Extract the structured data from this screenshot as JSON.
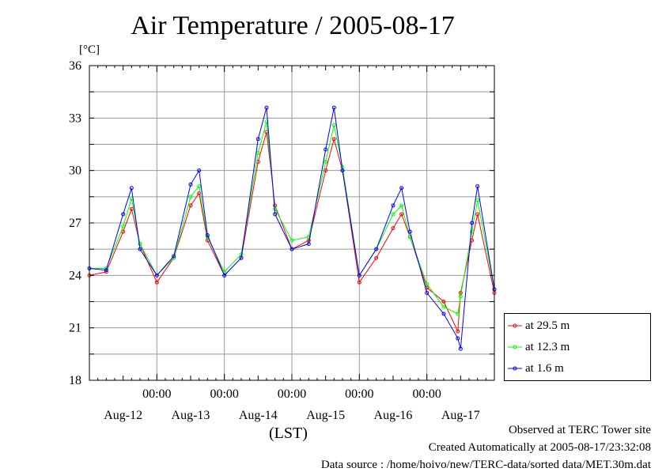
{
  "title": "Air Temperature / 2005-08-17",
  "unit_label": "[°C]",
  "xlabel": "(LST)",
  "footer": {
    "line1": "Observed at TERC Tower site",
    "line2": "Created Automatically at 2005-08-17/23:32:08",
    "line3": "Data source : /home/hoivo/new/TERC-data/sorted  data/MET.30m.dat"
  },
  "colors": {
    "at_29_5": "#ff0000",
    "at_12_3": "#00ff00",
    "at_1_6": "#0000ff",
    "grid": "#999999"
  },
  "chart_data": {
    "type": "line",
    "title": "Air Temperature / 2005-08-17",
    "ylabel": "[°C]",
    "xlabel": "(LST)",
    "ylim": [
      18,
      36
    ],
    "xlim_days": [
      0,
      6
    ],
    "yticks": [
      "18",
      "21",
      "24",
      "27",
      "30",
      "33",
      "36"
    ],
    "x_time_ticks": [
      "00:00",
      "00:00",
      "00:00",
      "00:00",
      "00:00"
    ],
    "x_date_labels": [
      "Aug-12",
      "Aug-13",
      "Aug-14",
      "Aug-15",
      "Aug-16",
      "Aug-17"
    ],
    "grid": true,
    "legend_position": "right, outside plot",
    "x_unit": "hours LST, 2005-08-12 00:00 to 2005-08-18 00:00",
    "x": [
      0,
      6,
      12,
      15,
      18,
      24,
      30,
      36,
      39,
      42,
      48,
      54,
      60,
      63,
      66,
      72,
      78,
      84,
      87,
      90,
      96,
      102,
      108,
      111,
      114,
      120,
      126,
      131,
      132,
      136,
      138,
      144
    ],
    "series": [
      {
        "name": "at 29.5 m",
        "values": [
          24.0,
          24.2,
          26.5,
          27.8,
          25.8,
          23.6,
          25.0,
          28.0,
          28.7,
          26.0,
          24.0,
          25.0,
          30.5,
          32.2,
          28.0,
          25.5,
          26.0,
          30.0,
          31.8,
          30.0,
          23.6,
          25.0,
          26.7,
          27.5,
          26.2,
          23.3,
          22.5,
          20.8,
          23.0,
          26.0,
          27.5,
          23.0
        ]
      },
      {
        "name": "at 12.3 m",
        "values": [
          24.4,
          24.4,
          26.8,
          28.4,
          25.8,
          24.0,
          25.0,
          28.5,
          29.1,
          26.2,
          24.2,
          25.2,
          31.0,
          32.8,
          27.8,
          26.0,
          26.2,
          30.5,
          32.6,
          30.2,
          24.0,
          25.5,
          27.5,
          28.0,
          26.2,
          23.5,
          22.2,
          21.8,
          22.8,
          26.5,
          28.3,
          23.2
        ]
      },
      {
        "name": "at 1.6 m",
        "values": [
          24.4,
          24.3,
          27.5,
          29.0,
          25.5,
          24.0,
          25.1,
          29.2,
          30.0,
          26.3,
          24.0,
          25.0,
          31.8,
          33.6,
          27.5,
          25.5,
          25.8,
          31.2,
          33.6,
          30.0,
          24.0,
          25.5,
          28.0,
          29.0,
          26.5,
          23.0,
          21.8,
          20.4,
          19.8,
          27.0,
          29.1,
          23.2
        ]
      }
    ]
  }
}
